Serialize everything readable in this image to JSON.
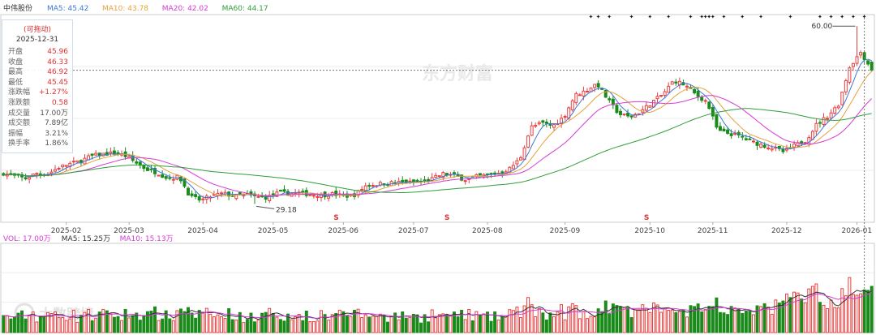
{
  "header": {
    "stock_name": "中伟股份",
    "ma_items": [
      {
        "label": "MA5: 45.42",
        "color": "#3c78d8"
      },
      {
        "label": "MA10: 43.78",
        "color": "#e6a23c"
      },
      {
        "label": "MA20: 42.02",
        "color": "#d63ad6"
      },
      {
        "label": "MA60: 44.17",
        "color": "#2e9e3a"
      }
    ]
  },
  "info_panel": {
    "title": "(可拖动)",
    "date": "2025-12-31",
    "rows": [
      {
        "label": "开盘",
        "value": "45.96"
      },
      {
        "label": "收盘",
        "value": "46.33"
      },
      {
        "label": "最高",
        "value": "46.92"
      },
      {
        "label": "最低",
        "value": "45.45"
      },
      {
        "label": "涨跌幅",
        "value": "+1.27%"
      },
      {
        "label": "涨跌额",
        "value": "0.58"
      },
      {
        "label": "成交量",
        "value": "17.00万"
      },
      {
        "label": "成交额",
        "value": "7.89亿"
      },
      {
        "label": "振幅",
        "value": "3.21%"
      },
      {
        "label": "换手率",
        "value": "1.86%"
      }
    ]
  },
  "watermark_top": "东方财富",
  "watermark_bottom": "大数跨境",
  "volume_header": [
    {
      "label": "VOL: 17.00万",
      "color": "#d63ad6"
    },
    {
      "label": "MA5: 15.25万",
      "color": "#333333"
    },
    {
      "label": "MA10: 15.13万",
      "color": "#d63ad6"
    }
  ],
  "colors": {
    "up": "#e84040",
    "down": "#1a8a1a",
    "ma5": "#3c78d8",
    "ma10": "#e6a23c",
    "ma20": "#d63ad6",
    "ma60": "#2e9e3a"
  },
  "chart_data": {
    "type": "candlestick",
    "x_ticks": [
      "2025-02",
      "2025-03",
      "2025-04",
      "2025-05",
      "2025-06",
      "2025-07",
      "2025-08",
      "2025-09",
      "2025-10",
      "2025-11",
      "2025-12",
      "2026-01"
    ],
    "annotations": {
      "max_label": "60.00",
      "min_label": "29.18"
    },
    "price_ylim": [
      26,
      62
    ],
    "volume_ylim": [
      0,
      40
    ],
    "close_key": [
      [
        0,
        34.5
      ],
      [
        10,
        34.0
      ],
      [
        20,
        33.6
      ],
      [
        30,
        34.5
      ],
      [
        40,
        34.3
      ],
      [
        50,
        35.5
      ],
      [
        60,
        36.1
      ],
      [
        70,
        36.6
      ],
      [
        80,
        37.5
      ],
      [
        90,
        37.8
      ],
      [
        100,
        38.0
      ],
      [
        110,
        37.6
      ],
      [
        120,
        36.4
      ],
      [
        130,
        35.2
      ],
      [
        140,
        34.6
      ],
      [
        150,
        33.6
      ],
      [
        160,
        33.9
      ],
      [
        170,
        30.4
      ],
      [
        180,
        29.8
      ],
      [
        190,
        30.6
      ],
      [
        200,
        31.0
      ],
      [
        210,
        30.5
      ],
      [
        220,
        30.8
      ],
      [
        230,
        30.4
      ],
      [
        240,
        30.3
      ],
      [
        250,
        31.1
      ],
      [
        260,
        31.0
      ],
      [
        270,
        31.1
      ],
      [
        280,
        30.8
      ],
      [
        290,
        30.7
      ],
      [
        300,
        30.9
      ],
      [
        310,
        30.5
      ],
      [
        320,
        30.8
      ],
      [
        330,
        32.4
      ],
      [
        340,
        32.6
      ],
      [
        350,
        32.8
      ],
      [
        360,
        32.9
      ],
      [
        370,
        32.9
      ],
      [
        380,
        33.0
      ],
      [
        390,
        33.5
      ],
      [
        400,
        34.4
      ],
      [
        410,
        34.1
      ],
      [
        420,
        33.4
      ],
      [
        430,
        33.9
      ],
      [
        440,
        34.2
      ],
      [
        450,
        34.5
      ],
      [
        460,
        35.2
      ],
      [
        470,
        37.0
      ],
      [
        480,
        42.5
      ],
      [
        490,
        43.2
      ],
      [
        500,
        42.7
      ],
      [
        510,
        44.3
      ],
      [
        520,
        48.0
      ],
      [
        530,
        48.8
      ],
      [
        540,
        50.1
      ],
      [
        550,
        47.2
      ],
      [
        560,
        44.8
      ],
      [
        570,
        44.2
      ],
      [
        580,
        45.2
      ],
      [
        590,
        46.8
      ],
      [
        600,
        48.2
      ],
      [
        610,
        50.6
      ],
      [
        620,
        49.8
      ],
      [
        630,
        48.1
      ],
      [
        640,
        46.9
      ],
      [
        650,
        41.8
      ],
      [
        660,
        41.4
      ],
      [
        670,
        40.9
      ],
      [
        680,
        40.0
      ],
      [
        690,
        39.4
      ],
      [
        700,
        38.9
      ],
      [
        710,
        38.2
      ],
      [
        720,
        39.3
      ],
      [
        730,
        40.2
      ],
      [
        740,
        43.0
      ],
      [
        750,
        44.4
      ],
      [
        760,
        46.5
      ],
      [
        770,
        53.0
      ],
      [
        780,
        55.5
      ],
      [
        790,
        52.5
      ]
    ]
  }
}
